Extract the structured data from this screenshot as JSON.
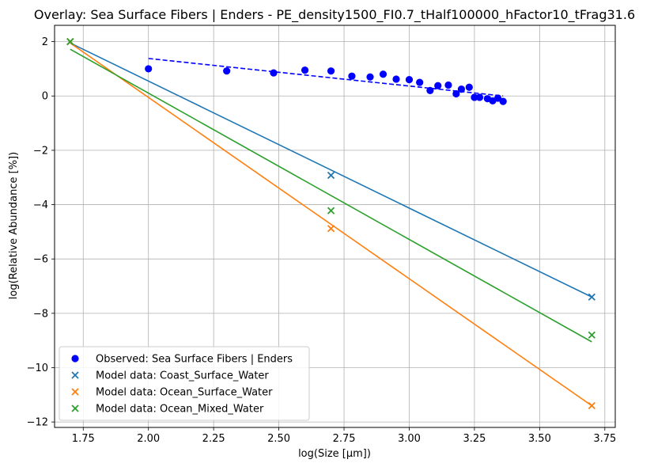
{
  "chart_data": {
    "type": "scatter",
    "title": "Overlay: Sea Surface Fibers | Enders - PE_density1500_FI0.7_tHalf100000_hFactor10_tFrag31.6",
    "xlabel": "log(Size [μm])",
    "ylabel": "log(Relative Abundance [%])",
    "xlim": [
      1.64,
      3.79
    ],
    "ylim": [
      -12.2,
      2.6
    ],
    "xticks": [
      1.75,
      2.0,
      2.25,
      2.5,
      2.75,
      3.0,
      3.25,
      3.5,
      3.75
    ],
    "xtick_labels": [
      "1.75",
      "2.00",
      "2.25",
      "2.50",
      "2.75",
      "3.00",
      "3.25",
      "3.50",
      "3.75"
    ],
    "yticks": [
      2,
      0,
      -2,
      -4,
      -6,
      -8,
      -10,
      -12
    ],
    "ytick_labels": [
      "2",
      "0",
      "−2",
      "−4",
      "−6",
      "−8",
      "−10",
      "−12"
    ],
    "grid": true,
    "legend_position": "lower-left",
    "observed": {
      "name": "Observed: Sea Surface Fibers | Enders",
      "color": "#0000ff",
      "marker": "circle",
      "x": [
        2.0,
        2.3,
        2.48,
        2.6,
        2.7,
        2.78,
        2.85,
        2.9,
        2.95,
        3.0,
        3.04,
        3.08,
        3.11,
        3.15,
        3.18,
        3.2,
        3.23,
        3.25,
        3.27,
        3.3,
        3.32,
        3.34,
        3.36
      ],
      "y": [
        1.0,
        0.92,
        0.85,
        0.95,
        0.92,
        0.73,
        0.7,
        0.8,
        0.62,
        0.6,
        0.5,
        0.2,
        0.38,
        0.4,
        0.08,
        0.25,
        0.32,
        -0.05,
        -0.05,
        -0.1,
        -0.18,
        -0.08,
        -0.2
      ],
      "fit": {
        "x": [
          2.0,
          3.36
        ],
        "y": [
          1.38,
          0.0
        ],
        "style": "dashed"
      }
    },
    "series": [
      {
        "name": "Model data: Coast_Surface_Water",
        "color": "#1f77b4",
        "marker": "x",
        "x": [
          1.7,
          2.7,
          3.7
        ],
        "y": [
          2.0,
          -2.92,
          -7.4
        ],
        "fit": {
          "x": [
            1.7,
            3.7
          ],
          "y": [
            1.95,
            -7.4
          ]
        }
      },
      {
        "name": "Model data: Ocean_Surface_Water",
        "color": "#ff7f0e",
        "marker": "x",
        "x": [
          1.7,
          2.7,
          3.7
        ],
        "y": [
          2.0,
          -4.88,
          -11.4
        ],
        "fit": {
          "x": [
            1.7,
            3.7
          ],
          "y": [
            1.95,
            -11.4
          ]
        }
      },
      {
        "name": "Model data: Ocean_Mixed_Water",
        "color": "#2ca02c",
        "marker": "x",
        "x": [
          1.7,
          2.7,
          3.7
        ],
        "y": [
          2.0,
          -4.22,
          -8.8
        ],
        "fit": {
          "x": [
            1.7,
            3.7
          ],
          "y": [
            1.72,
            -9.05
          ]
        }
      }
    ]
  }
}
